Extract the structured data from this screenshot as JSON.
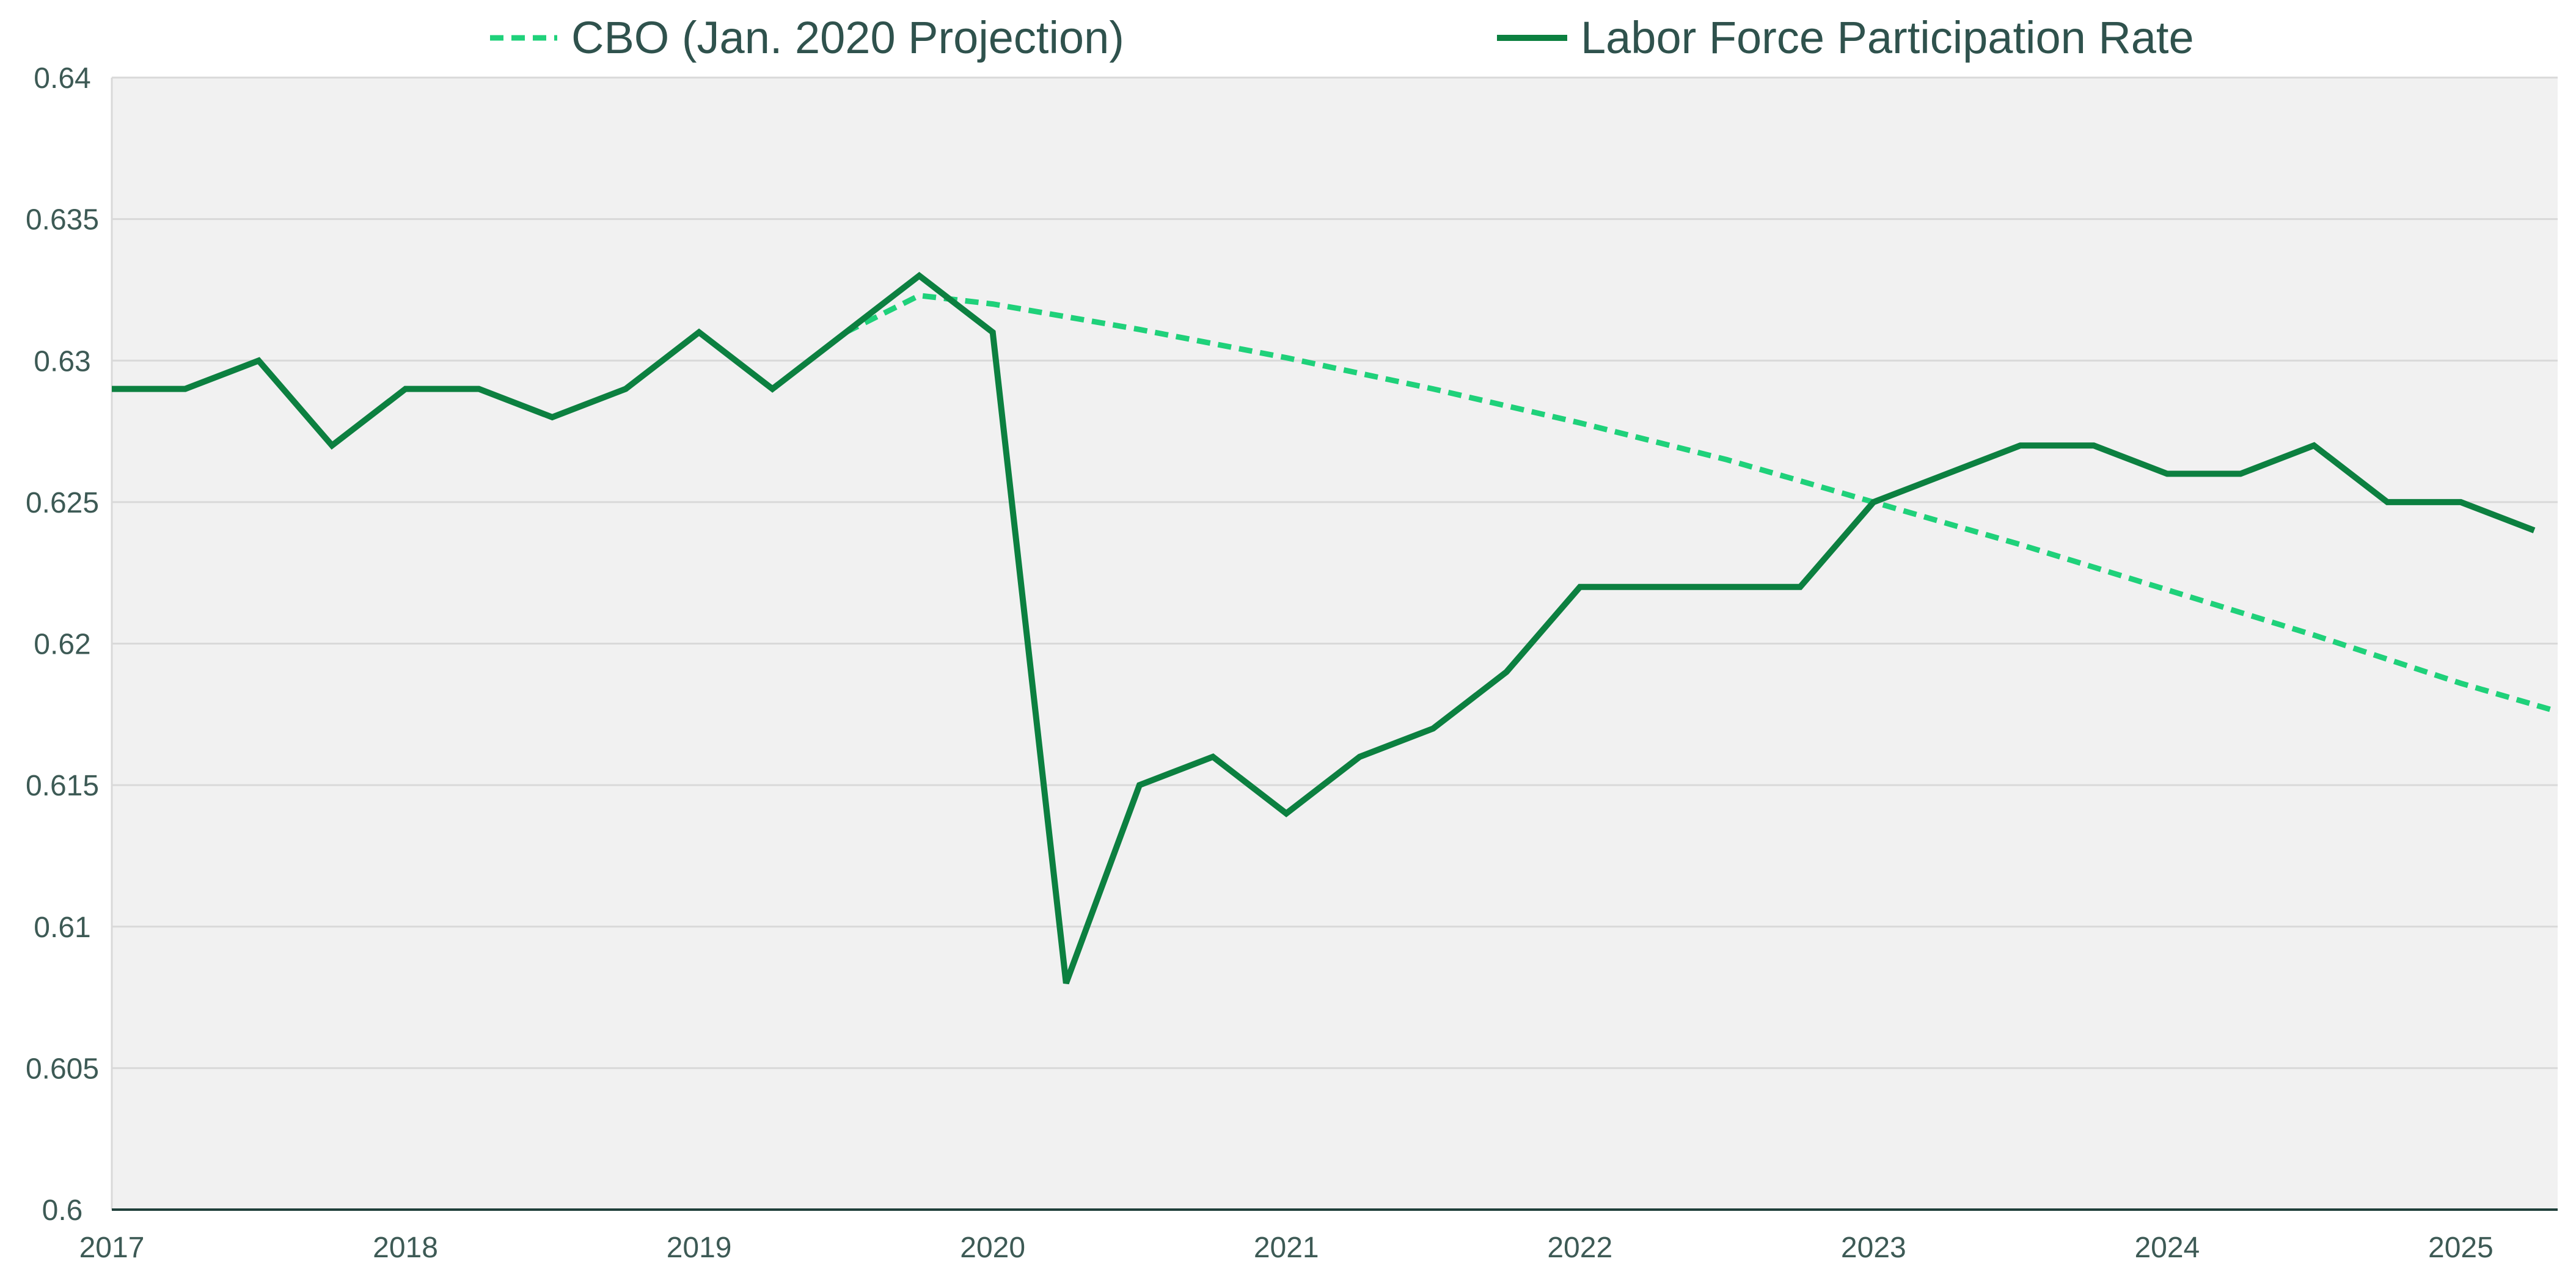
{
  "chart_data": {
    "type": "line",
    "title": "",
    "xlabel": "",
    "ylabel": "",
    "xlim": [
      2017,
      2025.33
    ],
    "ylim": [
      0.6,
      0.64
    ],
    "grid": true,
    "legend_position": "top",
    "x_ticks": [
      2017,
      2018,
      2019,
      2020,
      2021,
      2022,
      2023,
      2024,
      2025
    ],
    "x_tick_labels": [
      "2017",
      "2018",
      "2019",
      "2020",
      "2021",
      "2022",
      "2023",
      "2024",
      "2025"
    ],
    "y_ticks": [
      0.6,
      0.605,
      0.61,
      0.615,
      0.62,
      0.625,
      0.63,
      0.635,
      0.64
    ],
    "y_tick_labels": [
      "0.6",
      "0.605",
      "0.61",
      "0.615",
      "0.62",
      "0.625",
      "0.63",
      "0.635",
      "0.64"
    ],
    "colors": {
      "plot_background": "#f1f1f1",
      "grid": "#d9d9d9",
      "axis": "#1f3f3a"
    },
    "series": [
      {
        "name": "CBO (Jan. 2020 Projection)",
        "color": "#1fd17a",
        "line_style": "dashed",
        "points": [
          [
            2019.5,
            0.631
          ],
          [
            2019.75,
            0.6323
          ],
          [
            2020.0,
            0.632
          ],
          [
            2020.5,
            0.6311
          ],
          [
            2021.0,
            0.6301
          ],
          [
            2021.5,
            0.629
          ],
          [
            2022.0,
            0.6278
          ],
          [
            2022.5,
            0.6265
          ],
          [
            2023.0,
            0.625
          ],
          [
            2023.5,
            0.6235
          ],
          [
            2024.0,
            0.6219
          ],
          [
            2024.5,
            0.6203
          ],
          [
            2025.0,
            0.6186
          ],
          [
            2025.33,
            0.6176
          ]
        ]
      },
      {
        "name": "Labor Force Participation Rate",
        "color": "#0c8040",
        "line_style": "solid",
        "points": [
          [
            2017.0,
            0.629
          ],
          [
            2017.25,
            0.629
          ],
          [
            2017.5,
            0.63
          ],
          [
            2017.75,
            0.627
          ],
          [
            2018.0,
            0.629
          ],
          [
            2018.25,
            0.629
          ],
          [
            2018.5,
            0.628
          ],
          [
            2018.75,
            0.629
          ],
          [
            2019.0,
            0.631
          ],
          [
            2019.25,
            0.629
          ],
          [
            2019.5,
            0.631
          ],
          [
            2019.75,
            0.633
          ],
          [
            2020.0,
            0.631
          ],
          [
            2020.25,
            0.608
          ],
          [
            2020.5,
            0.615
          ],
          [
            2020.75,
            0.616
          ],
          [
            2021.0,
            0.614
          ],
          [
            2021.25,
            0.616
          ],
          [
            2021.5,
            0.617
          ],
          [
            2021.75,
            0.619
          ],
          [
            2022.0,
            0.622
          ],
          [
            2022.25,
            0.622
          ],
          [
            2022.5,
            0.622
          ],
          [
            2022.75,
            0.622
          ],
          [
            2023.0,
            0.625
          ],
          [
            2023.25,
            0.626
          ],
          [
            2023.5,
            0.627
          ],
          [
            2023.75,
            0.627
          ],
          [
            2024.0,
            0.626
          ],
          [
            2024.25,
            0.626
          ],
          [
            2024.5,
            0.627
          ],
          [
            2024.75,
            0.625
          ],
          [
            2025.0,
            0.625
          ],
          [
            2025.25,
            0.624
          ]
        ]
      }
    ]
  }
}
